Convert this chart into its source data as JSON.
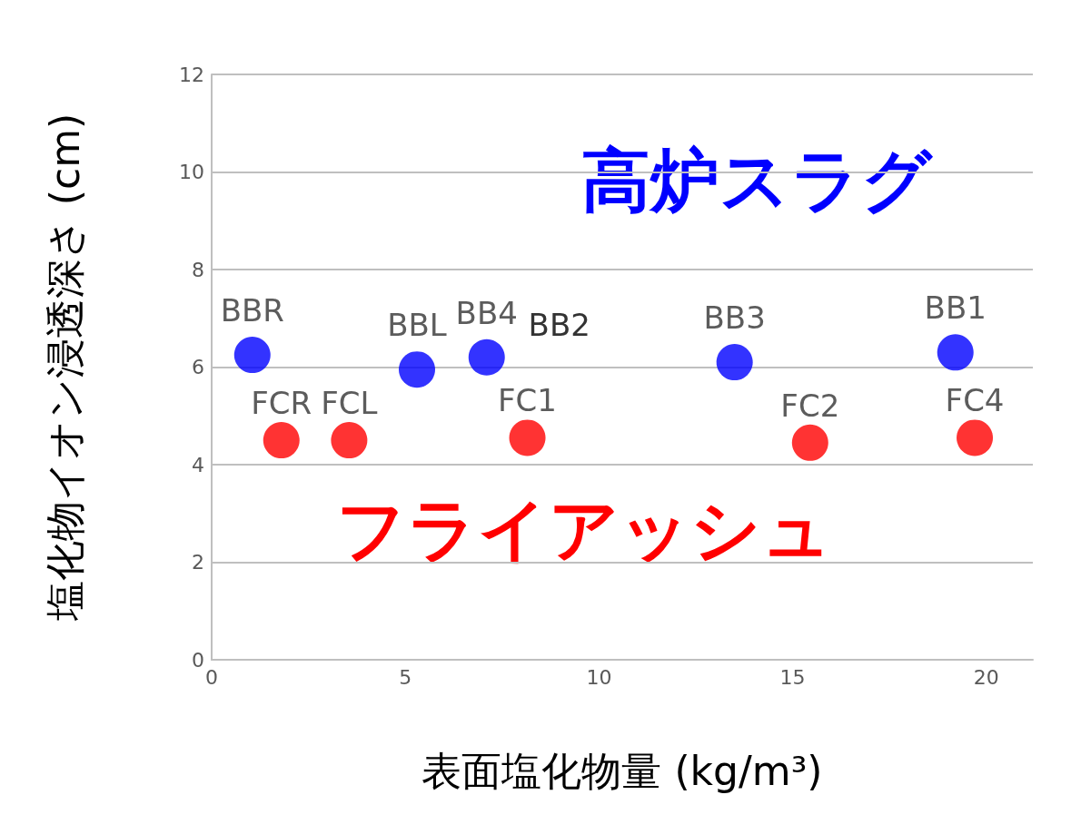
{
  "chart_data": {
    "type": "scatter",
    "xlabel": "表面塩化物量 (kg/m³)",
    "ylabel": "塩化物イオン浸透深さ (cm)",
    "xlim": [
      0,
      21.2
    ],
    "ylim": [
      0,
      12
    ],
    "xticks": [
      0,
      5,
      10,
      15,
      20
    ],
    "yticks": [
      0,
      2,
      4,
      6,
      8,
      10,
      12
    ],
    "grid": "y",
    "marker": "circle",
    "series": [
      {
        "name": "高炉スラグ",
        "color": "#0000ff",
        "x": [
          1.05,
          5.3,
          7.1,
          13.5,
          19.2
        ],
        "values": [
          6.25,
          5.95,
          6.2,
          6.1,
          6.3
        ],
        "value_labels": [
          "BBR",
          "BBL",
          "BB4",
          "BB3",
          "BB1"
        ]
      },
      {
        "name": "フライアッシュ",
        "color": "#ff0000",
        "x": [
          1.8,
          3.55,
          8.15,
          15.45,
          19.7
        ],
        "values": [
          4.5,
          4.5,
          4.55,
          4.45,
          4.55
        ],
        "value_labels": [
          "FCR",
          "FCL",
          "FC1",
          "FC2",
          "FC4"
        ]
      }
    ],
    "annotations": [
      {
        "text": "BB2",
        "x": 7.1,
        "y": 6.2
      }
    ]
  }
}
